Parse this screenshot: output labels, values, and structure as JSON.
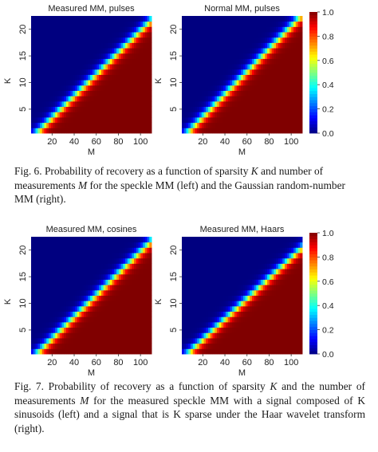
{
  "figure6": {
    "caption_parts": [
      {
        "t": "Fig. 6.  Probability of recovery as a function of sparsity ",
        "i": false
      },
      {
        "t": "K",
        "i": true
      },
      {
        "t": " and number of measurements ",
        "i": false
      },
      {
        "t": "M",
        "i": true
      },
      {
        "t": " for the speckle MM (left) and the Gaussian random-number MM (right).",
        "i": false
      }
    ]
  },
  "figure7": {
    "caption_parts": [
      {
        "t": "Fig. 7.  Probability of recovery as a function of sparsity ",
        "i": false
      },
      {
        "t": "K",
        "i": true
      },
      {
        "t": " and the number of measurements ",
        "i": false
      },
      {
        "t": "M",
        "i": true
      },
      {
        "t": " for the measured speckle MM with a signal composed of K sinusoids (left) and a signal that is K sparse under the Haar wavelet transform (right).",
        "i": false
      }
    ]
  },
  "chart_data": [
    {
      "type": "heatmap",
      "title": "Measured MM, pulses",
      "xlabel": "M",
      "ylabel": "K",
      "xticks": [
        20,
        40,
        60,
        80,
        100
      ],
      "yticks": [
        5,
        10,
        15,
        20
      ],
      "xlim": [
        1,
        110
      ],
      "ylim": [
        1,
        22
      ],
      "transition": {
        "slope": 4.9,
        "offset": 3,
        "width": 5.5
      },
      "colorbar": {
        "min": 0.0,
        "max": 1.0,
        "ticks": [
          "0.0",
          "0.2",
          "0.4",
          "0.6",
          "0.8",
          "1.0"
        ]
      }
    },
    {
      "type": "heatmap",
      "title": "Normal MM, pulses",
      "xlabel": "M",
      "ylabel": "K",
      "xticks": [
        20,
        40,
        60,
        80,
        100
      ],
      "yticks": [
        5,
        10,
        15,
        20
      ],
      "xlim": [
        1,
        110
      ],
      "ylim": [
        1,
        22
      ],
      "transition": {
        "slope": 4.7,
        "offset": 3,
        "width": 5.5
      },
      "colorbar": {
        "min": 0.0,
        "max": 1.0,
        "ticks": [
          "0.0",
          "0.2",
          "0.4",
          "0.6",
          "0.8",
          "1.0"
        ]
      }
    },
    {
      "type": "heatmap",
      "title": "Measured MM, cosines",
      "xlabel": "M",
      "ylabel": "K",
      "xticks": [
        20,
        40,
        60,
        80,
        100
      ],
      "yticks": [
        5,
        10,
        15,
        20
      ],
      "xlim": [
        1,
        110
      ],
      "ylim": [
        1,
        22
      ],
      "transition": {
        "slope": 4.9,
        "offset": 3,
        "width": 5.5
      },
      "colorbar": {
        "min": 0.0,
        "max": 1.0,
        "ticks": [
          "0.0",
          "0.2",
          "0.4",
          "0.6",
          "0.8",
          "1.0"
        ]
      }
    },
    {
      "type": "heatmap",
      "title": "Measured MM, Haars",
      "xlabel": "M",
      "ylabel": "K",
      "xticks": [
        20,
        40,
        60,
        80,
        100
      ],
      "yticks": [
        5,
        10,
        15,
        20
      ],
      "xlim": [
        1,
        110
      ],
      "ylim": [
        1,
        22
      ],
      "transition": {
        "slope": 5.2,
        "offset": 3,
        "width": 5.5
      },
      "colorbar": {
        "min": 0.0,
        "max": 1.0,
        "ticks": [
          "0.0",
          "0.2",
          "0.4",
          "0.6",
          "0.8",
          "1.0"
        ]
      }
    }
  ]
}
